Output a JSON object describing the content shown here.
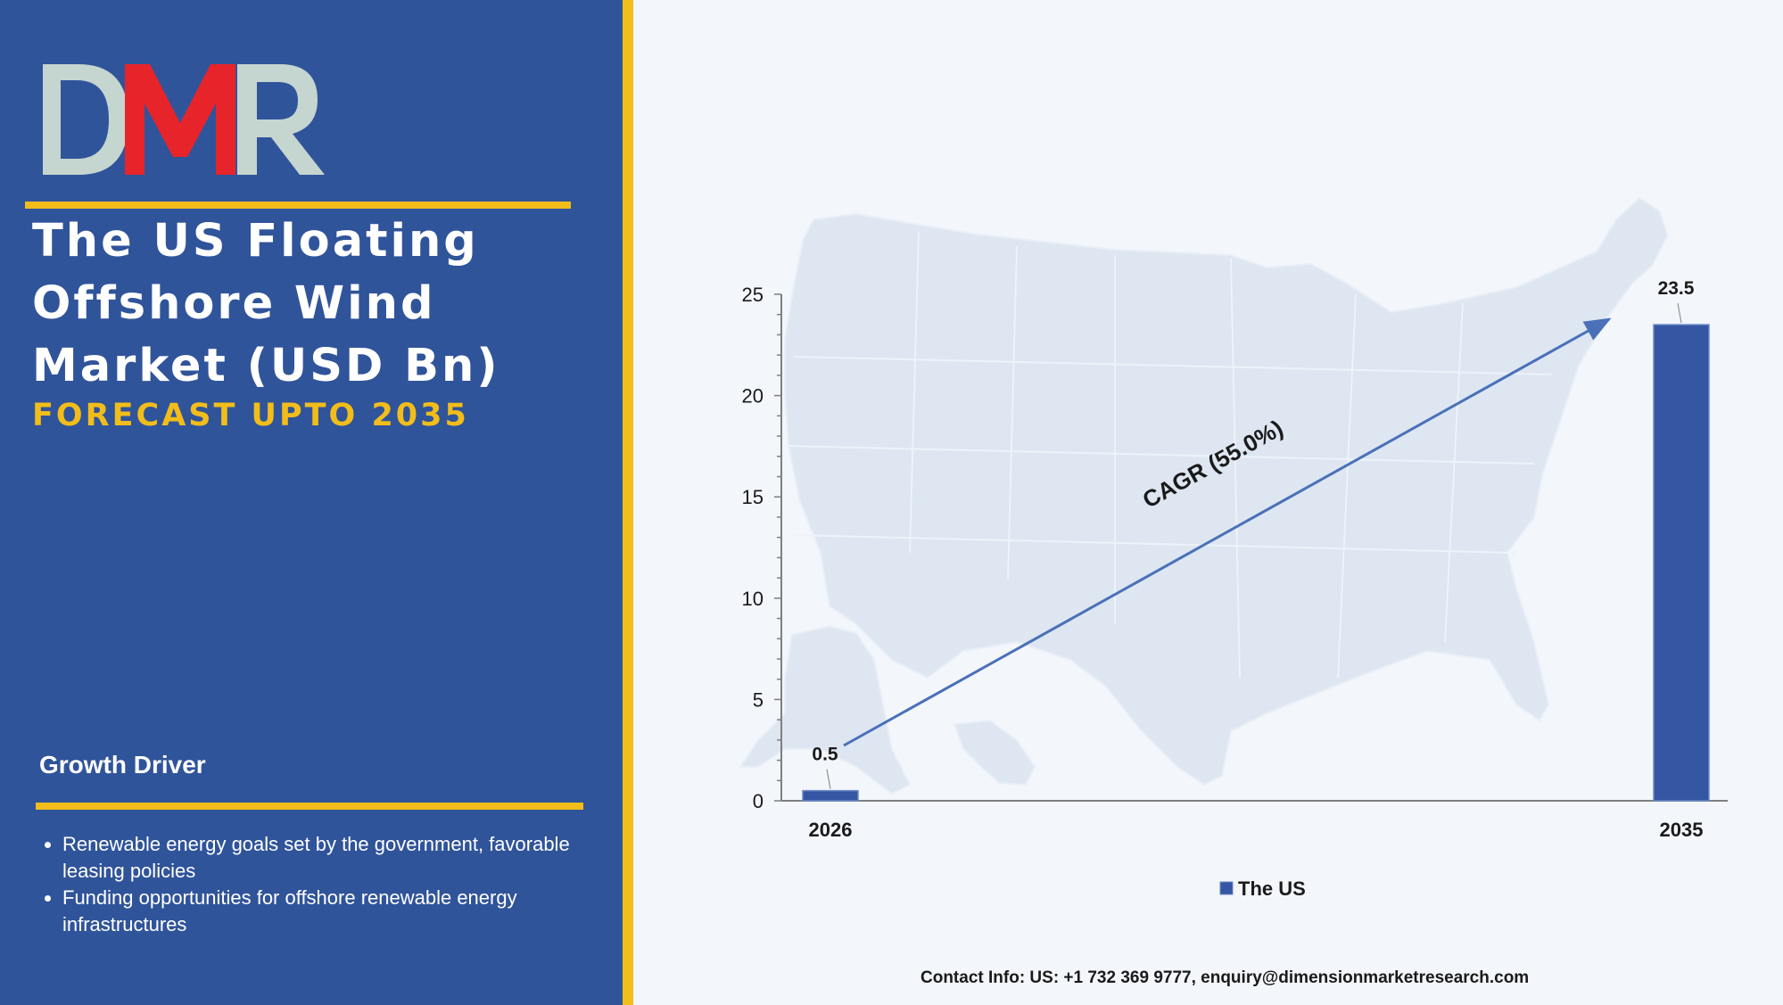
{
  "logo": {
    "text": "DMR"
  },
  "left_panel": {
    "title": "The US Floating Offshore Wind Market (USD Bn)",
    "subtitle": "FORECAST UPTO 2035",
    "growth_heading": "Growth Driver",
    "drivers": [
      "Renewable energy goals set by the government, favorable leasing policies",
      "Funding opportunities for offshore renewable energy infrastructures"
    ]
  },
  "colors": {
    "panel_blue": "#30549a",
    "accent_gold": "#f2bd1a",
    "bar_blue": "#3556a3",
    "logo_red": "#e8242b",
    "logo_gray": "#c5d5cf"
  },
  "chart_data": {
    "type": "bar",
    "categories": [
      "2026",
      "2035"
    ],
    "series": [
      {
        "name": "The US",
        "values": [
          0.5,
          23.5
        ]
      }
    ],
    "data_labels": [
      "0.5",
      "23.5"
    ],
    "ylim": [
      0,
      25
    ],
    "yticks": [
      0,
      5,
      10,
      15,
      20,
      25
    ],
    "annotation": "CAGR (55.0%)",
    "legend": "bottom-center",
    "background": "US map silhouette"
  },
  "footer": {
    "contact": "Contact Info: US: +1 732 369 9777, enquiry@dimensionmarketresearch.com"
  }
}
